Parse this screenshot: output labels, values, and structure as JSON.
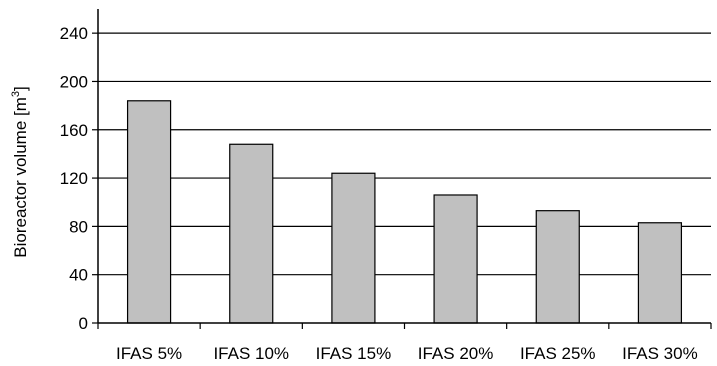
{
  "chart_data": {
    "type": "bar",
    "title": "",
    "xlabel": "",
    "ylabel": "Bioreactor volume [m",
    "ylabel_superscript": "3",
    "ylabel_suffix": "]",
    "categories": [
      "IFAS 5%",
      "IFAS 10%",
      "IFAS 15%",
      "IFAS 20%",
      "IFAS 25%",
      "IFAS 30%"
    ],
    "values": [
      184,
      148,
      124,
      106,
      93,
      83
    ],
    "ylim": [
      0,
      260
    ],
    "yticks": [
      0,
      40,
      80,
      120,
      160,
      200,
      240
    ],
    "grid": true,
    "legend": "none",
    "colors": {
      "bar_fill": "#c0c0c0",
      "bar_stroke": "#000000",
      "grid": "#000000",
      "axis": "#000000"
    }
  }
}
